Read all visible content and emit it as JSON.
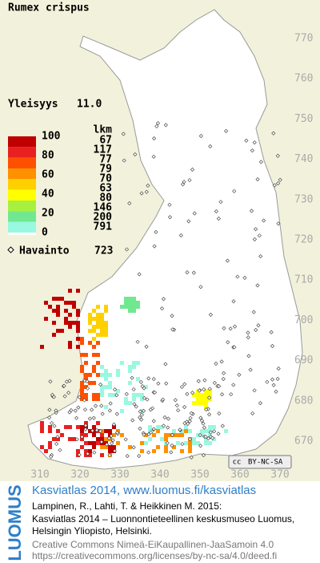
{
  "title": "Rumex crispus",
  "frequency": {
    "label": "Yleisyys",
    "value": "11.0"
  },
  "legend": {
    "levels": [
      100,
      80,
      60,
      40,
      20,
      0
    ],
    "count_header": "lkm",
    "counts": [
      67,
      117,
      77,
      79,
      70,
      63,
      80,
      146,
      200,
      791
    ],
    "colors": [
      "#c00000",
      "#e82020",
      "#ff5000",
      "#ff9000",
      "#ffd000",
      "#ffff00",
      "#a8f040",
      "#70e890",
      "#98f8e0",
      "#ffffff"
    ]
  },
  "observations": {
    "label": "Havainto",
    "count": 723
  },
  "y_axis": [
    770,
    760,
    750,
    740,
    730,
    720,
    710,
    700,
    690,
    680,
    670
  ],
  "x_axis": [
    310,
    320,
    330,
    340,
    350,
    360,
    370
  ],
  "license": "BY-NC-SA",
  "logo": "LUOMUS",
  "footer": {
    "link": "Kasviatlas 2014, www.luomus.fi/kasviatlas",
    "citation": [
      "Lampinen, R., Lahti, T. & Heikkinen M. 2015:",
      "Kasviatlas 2014 – Luonnontieteellinen keskusmuseo Luomus,",
      "Helsingin Yliopisto, Helsinki."
    ],
    "license_text": [
      "Creative Commons Nimeä-EiKaupallinen-JaaSamoin 4.0",
      "https://creativecommons.org/licenses/by-nc-sa/4.0/deed.fi"
    ]
  }
}
